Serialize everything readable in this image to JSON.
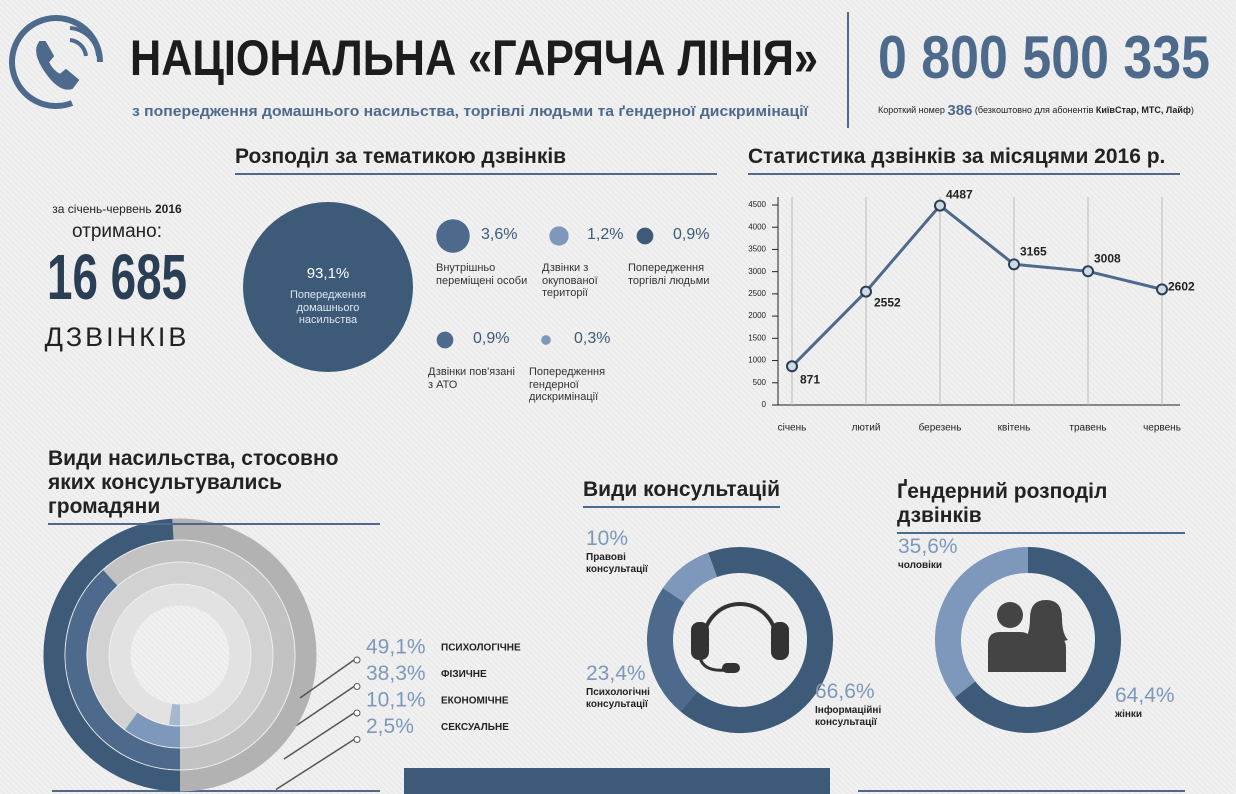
{
  "header": {
    "title": "НАЦІОНАЛЬНА «ГАРЯЧА ЛІНІЯ»",
    "subtitle": "з попередження домашнього насильства, торгівлі людьми та ґендерної дискримінації",
    "phone": "0 800 500 335",
    "short_label": "Короткий номер",
    "short_number": "386",
    "short_note": "(безкоштовно для абонентів",
    "operators": "КиївСтар, МТС, Лайф",
    "short_close": ")"
  },
  "summary": {
    "period": "за січень-червень",
    "year": "2016",
    "received": "отримано:",
    "count": "16 685",
    "unit": "ДЗВІНКІВ"
  },
  "chart_data": [
    {
      "type": "bubble",
      "title": "Розподіл за тематикою дзвінків",
      "categories": [
        "Попередження домашнього насильства",
        "Внутрішньо переміщені особи",
        "Дзвінки з окупованої території",
        "Попередження торгівлі людьми",
        "Дзвінки пов'язані з АТО",
        "Попередження гендерної дискримінації"
      ],
      "values": [
        93.1,
        3.6,
        1.2,
        0.9,
        0.9,
        0.3
      ],
      "value_labels": [
        "93,1%",
        "3,6%",
        "1,2%",
        "0,9%",
        "0,9%",
        "0,3%"
      ],
      "colors": [
        "#3d5a78",
        "#4d6a8c",
        "#7d98bb",
        "#3d5a78",
        "#4d6a8c",
        "#7d98bb"
      ]
    },
    {
      "type": "line",
      "title": "Статистика дзвінків за місяцями 2016 р.",
      "categories": [
        "січень",
        "лютий",
        "березень",
        "квітень",
        "травень",
        "червень"
      ],
      "values": [
        871,
        2552,
        4487,
        3165,
        3008,
        2602
      ],
      "ylim": [
        0,
        4500
      ],
      "yticks": [
        0,
        500,
        1000,
        1500,
        2000,
        2500,
        3000,
        3500,
        4000,
        4500
      ],
      "color": "#4d6a8c",
      "grid": true
    },
    {
      "type": "radial",
      "title": "Види насильства, стосовно яких консультувались громадяни",
      "categories": [
        "СЕКСУАЛЬНЕ",
        "ЕКОНОМІЧНЕ",
        "ФІЗИЧНЕ",
        "ПСИХОЛОГІЧНЕ"
      ],
      "values": [
        2.5,
        10.1,
        38.3,
        49.1
      ],
      "value_labels": [
        "2,5%",
        "10,1%",
        "38,3%",
        "49,1%"
      ],
      "colors": [
        "#a5b8d0",
        "#7d98bb",
        "#4d6a8c",
        "#3d5a78"
      ]
    },
    {
      "type": "donut",
      "title": "Види консультацій",
      "categories": [
        "Правові консультації",
        "Психологічні консультації",
        "Інформаційні консультації"
      ],
      "values": [
        10,
        23.4,
        66.6
      ],
      "value_labels": [
        "10%",
        "23,4%",
        "66,6%"
      ],
      "colors": [
        "#7d98bb",
        "#4d6a8c",
        "#3d5a78"
      ]
    },
    {
      "type": "donut",
      "title": "Ґендерний розподіл дзвінків",
      "categories": [
        "чоловіки",
        "жінки"
      ],
      "values": [
        35.6,
        64.4
      ],
      "value_labels": [
        "35,6%",
        "64,4%"
      ],
      "colors": [
        "#7d98bb",
        "#3d5a78"
      ]
    }
  ]
}
